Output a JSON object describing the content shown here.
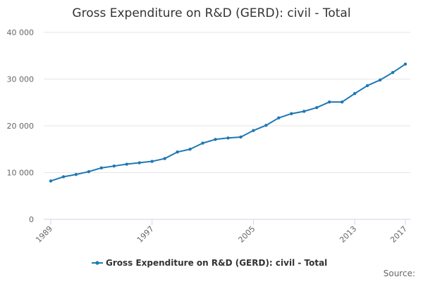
{
  "chart_data": {
    "type": "line",
    "title": "Gross Expenditure on R&D (GERD): civil - Total",
    "xlabel": "",
    "ylabel": "",
    "x": [
      1989,
      1990,
      1991,
      1992,
      1993,
      1994,
      1995,
      1996,
      1997,
      1998,
      1999,
      2000,
      2001,
      2002,
      2003,
      2004,
      2005,
      2006,
      2007,
      2008,
      2009,
      2010,
      2011,
      2012,
      2013,
      2014,
      2015,
      2016,
      2017
    ],
    "series": [
      {
        "name": "Gross Expenditure on R&D (GERD): civil - Total",
        "color": "#1f78b4",
        "values": [
          8200,
          9100,
          9600,
          10200,
          11000,
          11400,
          11800,
          12100,
          12400,
          13000,
          14400,
          15000,
          16300,
          17100,
          17400,
          17600,
          19000,
          20100,
          21700,
          22600,
          23100,
          23900,
          25100,
          25100,
          26900,
          28600,
          29800,
          31400,
          33200
        ]
      }
    ],
    "ylim": [
      0,
      40000
    ],
    "yticks": [
      0,
      10000,
      20000,
      30000,
      40000
    ],
    "ytick_labels": [
      "0",
      "10 000",
      "20 000",
      "30 000",
      "40 000"
    ],
    "xticks": [
      1989,
      1997,
      2005,
      2013,
      2017
    ],
    "xtick_labels": [
      "1989",
      "1997",
      "2005",
      "2013",
      "2017"
    ],
    "grid": "horizontal",
    "legend": "bottom"
  },
  "source_label": "Source:"
}
